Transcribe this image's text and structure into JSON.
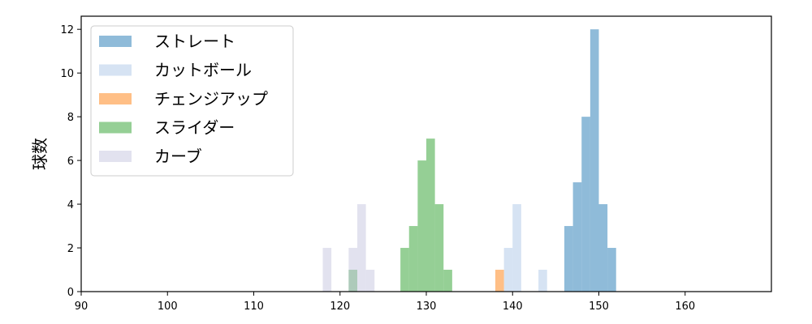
{
  "chart_data": {
    "type": "histogram",
    "ylabel": "球数",
    "xlabel": "",
    "xlim": [
      90,
      170
    ],
    "ylim": [
      0,
      12.6
    ],
    "xticks": [
      90,
      100,
      110,
      120,
      130,
      140,
      150,
      160
    ],
    "yticks": [
      0,
      2,
      4,
      6,
      8,
      10,
      12
    ],
    "bin_width": 1,
    "legend_position": "top-left",
    "grid": false,
    "series": [
      {
        "name": "ストレート",
        "color": "#1f77b4",
        "bins": [
          {
            "start": 146,
            "count": 3
          },
          {
            "start": 147,
            "count": 5
          },
          {
            "start": 148,
            "count": 8
          },
          {
            "start": 149,
            "count": 12
          },
          {
            "start": 150,
            "count": 4
          },
          {
            "start": 151,
            "count": 2
          }
        ]
      },
      {
        "name": "カットボール",
        "color": "#aec7e8",
        "bins": [
          {
            "start": 139,
            "count": 2
          },
          {
            "start": 140,
            "count": 4
          },
          {
            "start": 143,
            "count": 1
          }
        ]
      },
      {
        "name": "チェンジアップ",
        "color": "#ff7f0e",
        "bins": [
          {
            "start": 138,
            "count": 1
          }
        ]
      },
      {
        "name": "スライダー",
        "color": "#2ca02c",
        "bins": [
          {
            "start": 121,
            "count": 1
          },
          {
            "start": 127,
            "count": 2
          },
          {
            "start": 128,
            "count": 3
          },
          {
            "start": 129,
            "count": 6
          },
          {
            "start": 130,
            "count": 7
          },
          {
            "start": 131,
            "count": 4
          },
          {
            "start": 132,
            "count": 1
          }
        ]
      },
      {
        "name": "カーブ",
        "color": "#c5c6e0",
        "bins": [
          {
            "start": 118,
            "count": 2
          },
          {
            "start": 121,
            "count": 2
          },
          {
            "start": 122,
            "count": 4
          },
          {
            "start": 123,
            "count": 1
          }
        ]
      }
    ]
  }
}
